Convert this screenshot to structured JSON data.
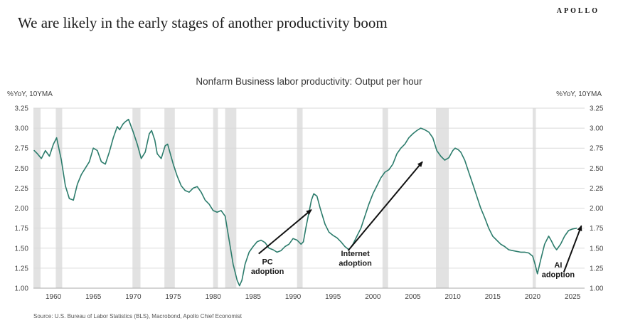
{
  "header": {
    "logo": "APOLLO",
    "headline": "We are likely in the early stages of another productivity boom"
  },
  "chart": {
    "title": "Nonfarm Business labor productivity: Output per hour",
    "unit_left": "%YoY, 10YMA",
    "unit_right": "%YoY, 10YMA",
    "source": "Source: U.S. Bureau of Labor Statistics (BLS), Macrobond, Apollo Chief Economist"
  },
  "chart_data": {
    "type": "line",
    "title": "Nonfarm Business labor productivity: Output per hour",
    "ylabel_left": "%YoY, 10YMA",
    "ylabel_right": "%YoY, 10YMA",
    "xlim": [
      1957.5,
      2026.5
    ],
    "ylim": [
      1.0,
      3.25
    ],
    "ytick_step": 0.25,
    "xticks": [
      1960,
      1965,
      1970,
      1975,
      1980,
      1985,
      1990,
      1995,
      2000,
      2005,
      2010,
      2015,
      2020,
      2025
    ],
    "grid": "horizontal",
    "line_color": "#2c7c6c",
    "recession_color": "#e2e2e2",
    "recessions": [
      [
        1957.5,
        1958.4
      ],
      [
        1960.3,
        1961.1
      ],
      [
        1969.9,
        1970.9
      ],
      [
        1973.9,
        1975.2
      ],
      [
        1980.0,
        1980.6
      ],
      [
        1981.5,
        1982.9
      ],
      [
        1990.5,
        1991.2
      ],
      [
        2001.2,
        2001.9
      ],
      [
        2007.9,
        2009.5
      ],
      [
        2020.0,
        2020.4
      ]
    ],
    "series": [
      {
        "name": "Nonfarm business labor productivity, output per hour (10Y MA)",
        "points": [
          [
            1957.6,
            2.72
          ],
          [
            1958.0,
            2.68
          ],
          [
            1958.5,
            2.62
          ],
          [
            1959.0,
            2.72
          ],
          [
            1959.5,
            2.65
          ],
          [
            1960.0,
            2.8
          ],
          [
            1960.4,
            2.88
          ],
          [
            1961.0,
            2.6
          ],
          [
            1961.5,
            2.28
          ],
          [
            1962.0,
            2.12
          ],
          [
            1962.5,
            2.1
          ],
          [
            1963.0,
            2.3
          ],
          [
            1963.5,
            2.42
          ],
          [
            1964.0,
            2.5
          ],
          [
            1964.5,
            2.58
          ],
          [
            1965.0,
            2.75
          ],
          [
            1965.5,
            2.72
          ],
          [
            1966.0,
            2.58
          ],
          [
            1966.5,
            2.55
          ],
          [
            1967.0,
            2.7
          ],
          [
            1967.5,
            2.88
          ],
          [
            1968.0,
            3.02
          ],
          [
            1968.3,
            2.98
          ],
          [
            1968.7,
            3.05
          ],
          [
            1969.0,
            3.08
          ],
          [
            1969.4,
            3.11
          ],
          [
            1970.0,
            2.95
          ],
          [
            1970.5,
            2.8
          ],
          [
            1971.0,
            2.62
          ],
          [
            1971.5,
            2.7
          ],
          [
            1972.0,
            2.93
          ],
          [
            1972.3,
            2.97
          ],
          [
            1972.7,
            2.85
          ],
          [
            1973.0,
            2.68
          ],
          [
            1973.5,
            2.62
          ],
          [
            1974.0,
            2.78
          ],
          [
            1974.3,
            2.8
          ],
          [
            1975.0,
            2.55
          ],
          [
            1975.5,
            2.4
          ],
          [
            1976.0,
            2.28
          ],
          [
            1976.5,
            2.22
          ],
          [
            1977.0,
            2.2
          ],
          [
            1977.5,
            2.25
          ],
          [
            1978.0,
            2.27
          ],
          [
            1978.5,
            2.2
          ],
          [
            1979.0,
            2.1
          ],
          [
            1979.5,
            2.05
          ],
          [
            1980.0,
            1.97
          ],
          [
            1980.5,
            1.95
          ],
          [
            1981.0,
            1.97
          ],
          [
            1981.5,
            1.9
          ],
          [
            1982.0,
            1.6
          ],
          [
            1982.5,
            1.3
          ],
          [
            1983.0,
            1.1
          ],
          [
            1983.3,
            1.03
          ],
          [
            1983.6,
            1.1
          ],
          [
            1984.0,
            1.3
          ],
          [
            1984.5,
            1.45
          ],
          [
            1985.0,
            1.52
          ],
          [
            1985.5,
            1.58
          ],
          [
            1986.0,
            1.6
          ],
          [
            1986.5,
            1.57
          ],
          [
            1987.0,
            1.5
          ],
          [
            1987.5,
            1.48
          ],
          [
            1988.0,
            1.45
          ],
          [
            1988.5,
            1.47
          ],
          [
            1989.0,
            1.52
          ],
          [
            1989.5,
            1.55
          ],
          [
            1990.0,
            1.62
          ],
          [
            1990.5,
            1.6
          ],
          [
            1991.0,
            1.55
          ],
          [
            1991.3,
            1.58
          ],
          [
            1991.6,
            1.75
          ],
          [
            1992.0,
            1.95
          ],
          [
            1992.3,
            2.1
          ],
          [
            1992.6,
            2.18
          ],
          [
            1993.0,
            2.15
          ],
          [
            1993.4,
            2.0
          ],
          [
            1994.0,
            1.8
          ],
          [
            1994.5,
            1.7
          ],
          [
            1995.0,
            1.66
          ],
          [
            1995.5,
            1.63
          ],
          [
            1996.0,
            1.58
          ],
          [
            1996.5,
            1.52
          ],
          [
            1997.0,
            1.48
          ],
          [
            1997.5,
            1.55
          ],
          [
            1998.0,
            1.65
          ],
          [
            1998.5,
            1.75
          ],
          [
            1999.0,
            1.9
          ],
          [
            1999.5,
            2.05
          ],
          [
            2000.0,
            2.18
          ],
          [
            2000.5,
            2.28
          ],
          [
            2001.0,
            2.38
          ],
          [
            2001.5,
            2.45
          ],
          [
            2002.0,
            2.48
          ],
          [
            2002.5,
            2.55
          ],
          [
            2003.0,
            2.68
          ],
          [
            2003.5,
            2.75
          ],
          [
            2004.0,
            2.8
          ],
          [
            2004.5,
            2.88
          ],
          [
            2005.0,
            2.93
          ],
          [
            2005.5,
            2.97
          ],
          [
            2006.0,
            3.0
          ],
          [
            2006.5,
            2.98
          ],
          [
            2007.0,
            2.95
          ],
          [
            2007.5,
            2.88
          ],
          [
            2008.0,
            2.72
          ],
          [
            2008.5,
            2.65
          ],
          [
            2009.0,
            2.6
          ],
          [
            2009.5,
            2.63
          ],
          [
            2010.0,
            2.72
          ],
          [
            2010.3,
            2.75
          ],
          [
            2010.7,
            2.73
          ],
          [
            2011.0,
            2.7
          ],
          [
            2011.5,
            2.6
          ],
          [
            2012.0,
            2.45
          ],
          [
            2012.5,
            2.3
          ],
          [
            2013.0,
            2.15
          ],
          [
            2013.5,
            2.0
          ],
          [
            2014.0,
            1.88
          ],
          [
            2014.5,
            1.75
          ],
          [
            2015.0,
            1.65
          ],
          [
            2015.5,
            1.6
          ],
          [
            2016.0,
            1.55
          ],
          [
            2016.5,
            1.52
          ],
          [
            2017.0,
            1.48
          ],
          [
            2017.5,
            1.47
          ],
          [
            2018.0,
            1.46
          ],
          [
            2018.5,
            1.45
          ],
          [
            2019.0,
            1.45
          ],
          [
            2019.5,
            1.44
          ],
          [
            2020.0,
            1.4
          ],
          [
            2020.3,
            1.3
          ],
          [
            2020.6,
            1.18
          ],
          [
            2021.0,
            1.35
          ],
          [
            2021.5,
            1.55
          ],
          [
            2022.0,
            1.65
          ],
          [
            2022.3,
            1.6
          ],
          [
            2022.7,
            1.52
          ],
          [
            2023.0,
            1.48
          ],
          [
            2023.5,
            1.55
          ],
          [
            2024.0,
            1.65
          ],
          [
            2024.5,
            1.72
          ],
          [
            2025.0,
            1.74
          ],
          [
            2025.5,
            1.75
          ]
        ]
      }
    ],
    "annotations": [
      {
        "lines": [
          "PC",
          "adoption"
        ],
        "x": 1986.8,
        "y": 1.3,
        "arrow": {
          "x1": 1985.7,
          "y1": 1.43,
          "x2": 1992.3,
          "y2": 1.98
        }
      },
      {
        "lines": [
          "Internet",
          "adoption"
        ],
        "x": 1997.8,
        "y": 1.4,
        "arrow": {
          "x1": 1996.9,
          "y1": 1.47,
          "x2": 2006.2,
          "y2": 2.58
        }
      },
      {
        "lines": [
          "AI",
          "adoption"
        ],
        "x": 2023.2,
        "y": 1.26,
        "arrow": {
          "x1": 2023.9,
          "y1": 1.2,
          "x2": 2026.1,
          "y2": 1.78
        }
      }
    ]
  }
}
